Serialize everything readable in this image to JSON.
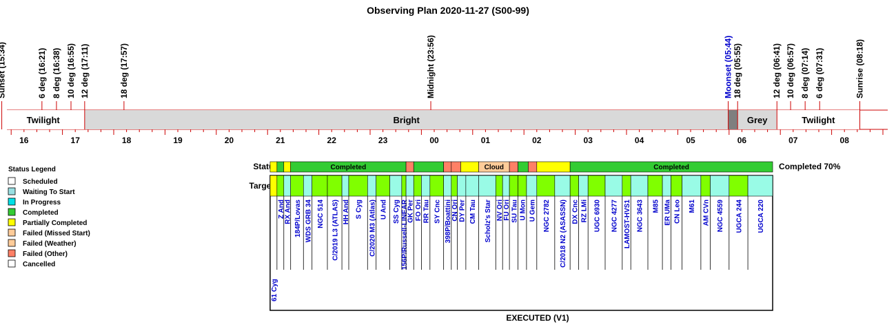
{
  "chart_data": {
    "type": "timeline",
    "title": "Observing Plan 2020-11-27 (S00-99)",
    "footer": "EXECUTED (V1)",
    "events": [
      {
        "label": "Sunset (15:34)",
        "time": "15:34",
        "highlight": false
      },
      {
        "label": "6 deg (16:21)",
        "time": "16:21",
        "highlight": false
      },
      {
        "label": "8 deg (16:38)",
        "time": "16:38",
        "highlight": false
      },
      {
        "label": "10 deg (16:55)",
        "time": "16:55",
        "highlight": false
      },
      {
        "label": "12 deg (17:11)",
        "time": "17:11",
        "highlight": false
      },
      {
        "label": "18 deg (17:57)",
        "time": "17:57",
        "highlight": false
      },
      {
        "label": "Midnight (23:56)",
        "time": "23:56",
        "highlight": false
      },
      {
        "label": "Moonset (05:44)",
        "time": "05:44",
        "highlight": true
      },
      {
        "label": "18 deg (05:55)",
        "time": "05:55",
        "highlight": false
      },
      {
        "label": "12 deg (06:41)",
        "time": "06:41",
        "highlight": false
      },
      {
        "label": "10 deg (06:57)",
        "time": "06:57",
        "highlight": false
      },
      {
        "label": "8 deg (07:14)",
        "time": "07:14",
        "highlight": false
      },
      {
        "label": "6 deg (07:31)",
        "time": "07:31",
        "highlight": false
      },
      {
        "label": "Sunrise (08:18)",
        "time": "08:18",
        "highlight": false
      }
    ],
    "sky_conditions": [
      {
        "label": "Twilight",
        "start": "15:34",
        "end": "17:11",
        "color": "#ffffff"
      },
      {
        "label": "Bright",
        "start": "17:11",
        "end": "05:44",
        "color": "#d9d9d9"
      },
      {
        "label": "",
        "start": "05:44",
        "end": "05:55",
        "color": "#7f7f7f"
      },
      {
        "label": "Grey",
        "start": "05:55",
        "end": "06:41",
        "color": "#d9d9d9"
      },
      {
        "label": "Twilight",
        "start": "06:41",
        "end": "08:18",
        "color": "#ffffff"
      }
    ],
    "hour_ticks": [
      "16",
      "17",
      "18",
      "19",
      "20",
      "21",
      "22",
      "23",
      "00",
      "01",
      "02",
      "03",
      "04",
      "05",
      "06",
      "07",
      "08"
    ],
    "status_row_label": "Status",
    "targets_row_label": "Targets",
    "completion_text": "Completed 70%",
    "status_segments": [
      {
        "start": "20:48",
        "end": "20:56",
        "status": "Partially Completed",
        "label": ""
      },
      {
        "start": "20:56",
        "end": "21:04",
        "status": "Completed",
        "label": ""
      },
      {
        "start": "21:04",
        "end": "21:12",
        "status": "Partially Completed",
        "label": ""
      },
      {
        "start": "21:12",
        "end": "23:27",
        "status": "Completed",
        "label": "Completed"
      },
      {
        "start": "23:27",
        "end": "23:36",
        "status": "Failed (Other)",
        "label": ""
      },
      {
        "start": "23:36",
        "end": "00:11",
        "status": "Completed",
        "label": ""
      },
      {
        "start": "00:11",
        "end": "00:20",
        "status": "Failed (Other)",
        "label": ""
      },
      {
        "start": "00:20",
        "end": "00:31",
        "status": "Failed (Other)",
        "label": ""
      },
      {
        "start": "00:31",
        "end": "00:52",
        "status": "Partially Completed",
        "label": ""
      },
      {
        "start": "00:52",
        "end": "01:28",
        "status": "Failed (Weather)",
        "label": "Cloud"
      },
      {
        "start": "01:28",
        "end": "01:38",
        "status": "Failed (Other)",
        "label": ""
      },
      {
        "start": "01:38",
        "end": "01:50",
        "status": "Completed",
        "label": ""
      },
      {
        "start": "01:50",
        "end": "02:00",
        "status": "Failed (Other)",
        "label": ""
      },
      {
        "start": "02:00",
        "end": "02:39",
        "status": "Partially Completed",
        "label": ""
      },
      {
        "start": "02:39",
        "end": "06:36",
        "status": "Completed",
        "label": "Completed"
      }
    ],
    "targets": [
      {
        "name": "61 Cyg",
        "start": "20:48",
        "end": "20:56",
        "status": "Partially Completed"
      },
      {
        "name": "Z And",
        "start": "20:56",
        "end": "21:04",
        "status": "Completed"
      },
      {
        "name": "RX And",
        "start": "21:04",
        "end": "21:12",
        "status": "Waiting To Start"
      },
      {
        "name": "184P/Lovas",
        "start": "21:12",
        "end": "21:27",
        "status": "Completed"
      },
      {
        "name": "WDS GRB 34",
        "start": "21:27",
        "end": "21:37",
        "status": "Waiting To Start"
      },
      {
        "name": "NGC 514",
        "start": "21:37",
        "end": "21:55",
        "status": "Completed"
      },
      {
        "name": "C/2019 L3 (ATLAS)",
        "start": "21:55",
        "end": "22:12",
        "status": "Completed"
      },
      {
        "name": "HH And",
        "start": "22:12",
        "end": "22:20",
        "status": "Waiting To Start"
      },
      {
        "name": "S Cyg",
        "start": "22:20",
        "end": "22:42",
        "status": "Completed"
      },
      {
        "name": "C/2020 M3 (Atlas)",
        "start": "22:42",
        "end": "22:52",
        "status": "Waiting To Start"
      },
      {
        "name": "U And",
        "start": "22:52",
        "end": "23:08",
        "status": "Completed"
      },
      {
        "name": "SS Cyg",
        "start": "23:08",
        "end": "23:22",
        "status": "Waiting To Start"
      },
      {
        "name": "156P/Russell-LINEAR",
        "start": "23:22",
        "end": "23:27",
        "status": "Completed"
      },
      {
        "name": "GK Per",
        "start": "23:27",
        "end": "23:36",
        "status": "Waiting To Start"
      },
      {
        "name": "FO Ori",
        "start": "23:36",
        "end": "23:45",
        "status": "Completed"
      },
      {
        "name": "RR Tau",
        "start": "23:45",
        "end": "23:55",
        "status": "Waiting To Start"
      },
      {
        "name": "SY Cnc",
        "start": "23:55",
        "end": "00:11",
        "status": "Completed"
      },
      {
        "name": "398P/Boattini",
        "start": "00:11",
        "end": "00:20",
        "status": "Waiting To Start"
      },
      {
        "name": "CN Ori",
        "start": "00:20",
        "end": "00:27",
        "status": "Completed"
      },
      {
        "name": "DY Per",
        "start": "00:27",
        "end": "00:37",
        "status": "Waiting To Start"
      },
      {
        "name": "CM Tau",
        "start": "00:37",
        "end": "00:52",
        "status": "Waiting To Start"
      },
      {
        "name": "Scholz's Star",
        "start": "00:52",
        "end": "01:12",
        "status": "Waiting To Start"
      },
      {
        "name": "NV Ori",
        "start": "01:12",
        "end": "01:20",
        "status": "Completed"
      },
      {
        "name": "FU Ori",
        "start": "01:20",
        "end": "01:28",
        "status": "Waiting To Start"
      },
      {
        "name": "SU Tau",
        "start": "01:28",
        "end": "01:38",
        "status": "Completed"
      },
      {
        "name": "U Mon",
        "start": "01:38",
        "end": "01:48",
        "status": "Completed"
      },
      {
        "name": "U Gem",
        "start": "01:48",
        "end": "02:00",
        "status": "Waiting To Start"
      },
      {
        "name": "NGC 2782",
        "start": "02:00",
        "end": "02:21",
        "status": "Completed"
      },
      {
        "name": "C/2018 N2 (ASASSN)",
        "start": "02:21",
        "end": "02:39",
        "status": "Waiting To Start"
      },
      {
        "name": "DX Cnc",
        "start": "02:39",
        "end": "02:49",
        "status": "Completed"
      },
      {
        "name": "RZ LMi",
        "start": "02:49",
        "end": "03:00",
        "status": "Waiting To Start"
      },
      {
        "name": "UGC 6930",
        "start": "03:00",
        "end": "03:20",
        "status": "Completed"
      },
      {
        "name": "NGC 4277",
        "start": "03:20",
        "end": "03:40",
        "status": "Waiting To Start"
      },
      {
        "name": "LAMOST-HVS1",
        "start": "03:40",
        "end": "03:50",
        "status": "Completed"
      },
      {
        "name": "NGC 3643",
        "start": "03:50",
        "end": "04:10",
        "status": "Waiting To Start"
      },
      {
        "name": "M85",
        "start": "04:10",
        "end": "04:27",
        "status": "Completed"
      },
      {
        "name": "ER UMa",
        "start": "04:27",
        "end": "04:37",
        "status": "Waiting To Start"
      },
      {
        "name": "CN Leo",
        "start": "04:37",
        "end": "04:50",
        "status": "Completed"
      },
      {
        "name": "M61",
        "start": "04:50",
        "end": "05:12",
        "status": "Waiting To Start"
      },
      {
        "name": "AM CVn",
        "start": "05:12",
        "end": "05:23",
        "status": "Completed"
      },
      {
        "name": "NGC 4559",
        "start": "05:23",
        "end": "05:45",
        "status": "Waiting To Start"
      },
      {
        "name": "UGCA 244",
        "start": "05:45",
        "end": "06:07",
        "status": "Completed"
      },
      {
        "name": "UGCA 220",
        "start": "06:07",
        "end": "06:36",
        "status": "Waiting To Start"
      }
    ],
    "legend_title": "Status Legend",
    "legend": [
      {
        "label": "Scheduled",
        "color": "#ffffff"
      },
      {
        "label": "Waiting To Start",
        "color": "#99dfe2"
      },
      {
        "label": "In Progress",
        "color": "#00e0e6"
      },
      {
        "label": "Completed",
        "color": "#33cc33"
      },
      {
        "label": "Partially Completed",
        "color": "#ffff00"
      },
      {
        "label": "Failed (Missed Start)",
        "color": "#ffcc99"
      },
      {
        "label": "Failed (Weather)",
        "color": "#ffcc99"
      },
      {
        "label": "Failed (Other)",
        "color": "#ff8066"
      },
      {
        "label": "Cancelled",
        "color": "#ffffff"
      }
    ],
    "colors": {
      "timeline_line": "#cc0000",
      "highlight_text": "#0000cc",
      "target_text": "#0000cc",
      "completed_target_fill": "#80ff00",
      "waiting_target_fill": "#99fbe6"
    }
  }
}
